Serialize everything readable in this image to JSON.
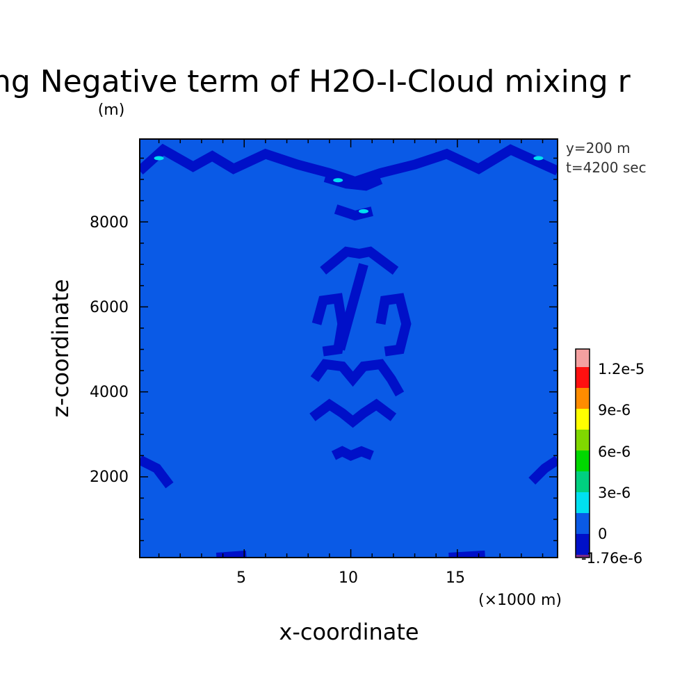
{
  "chart_data": {
    "type": "heatmap",
    "title": "ng Negative term of H2O-I-Cloud mixing r",
    "title_unit": "(m)",
    "xlabel": "x-coordinate",
    "ylabel": "z-coordinate",
    "x_unit": "(×1000 m)",
    "xlim": [
      0.1,
      19.7
    ],
    "ylim": [
      100,
      9950
    ],
    "x_ticks": [
      "5",
      "10",
      "15"
    ],
    "x_tick_values": [
      5,
      10,
      15
    ],
    "y_ticks": [
      "2000",
      "4000",
      "6000",
      "8000"
    ],
    "y_tick_values": [
      2000,
      4000,
      6000,
      8000
    ],
    "annotations": [
      "y=200 m",
      "t=4200 sec"
    ],
    "background_level": "0",
    "colorbar": {
      "levels": [
        {
          "color": "#7a2a8a"
        },
        {
          "color": "#0010c8"
        },
        {
          "color": "#0a5ae6"
        },
        {
          "color": "#00e0f0"
        },
        {
          "color": "#00d080"
        },
        {
          "color": "#00d800"
        },
        {
          "color": "#80d800"
        },
        {
          "color": "#ffff00"
        },
        {
          "color": "#ff8c00"
        },
        {
          "color": "#ff1010"
        },
        {
          "color": "#f4a0a0"
        }
      ],
      "labels": [
        "1.2e-5",
        "9e-6",
        "6e-6",
        "3e-6",
        "0",
        "-1.76e-6"
      ],
      "label_values": [
        1.2e-05,
        9e-06,
        6e-06,
        3e-06,
        0,
        -1.76e-06
      ]
    },
    "negative_regions": [
      {
        "x": [
          0.1,
          1.2,
          2.6,
          3.5,
          4.5,
          6.0,
          7.5,
          9.0,
          10.2,
          11.4,
          13.0,
          14.5,
          16.0,
          17.5,
          19.7
        ],
        "z": [
          9200,
          9700,
          9300,
          9550,
          9250,
          9600,
          9350,
          9150,
          8950,
          9150,
          9350,
          9600,
          9250,
          9700,
          9200
        ]
      },
      {
        "x": [
          8.8,
          9.8,
          10.7,
          11.4
        ],
        "z": [
          9050,
          8900,
          8850,
          9000
        ]
      },
      {
        "x": [
          9.3,
          10.2,
          11.0
        ],
        "z": [
          8300,
          8150,
          8250
        ]
      },
      {
        "x": [
          8.7,
          9.8,
          10.4,
          10.9,
          12.1
        ],
        "z": [
          6850,
          7300,
          7250,
          7300,
          6850
        ]
      },
      {
        "x": [
          9.5,
          10.6
        ],
        "z": [
          5000,
          7000
        ]
      },
      {
        "x": [
          8.4,
          8.7,
          9.4,
          9.6,
          9.4,
          8.7
        ],
        "z": [
          5600,
          6150,
          6200,
          5600,
          5000,
          4950
        ]
      },
      {
        "x": [
          11.4,
          11.6,
          12.3,
          12.6,
          12.3,
          11.6
        ],
        "z": [
          5600,
          6150,
          6200,
          5600,
          5000,
          4950
        ]
      },
      {
        "x": [
          8.3,
          8.8,
          9.6,
          10.1,
          10.6,
          11.4,
          11.9,
          12.3
        ],
        "z": [
          4300,
          4650,
          4600,
          4300,
          4600,
          4650,
          4300,
          3950
        ]
      },
      {
        "x": [
          8.2,
          9.0,
          9.6,
          10.1,
          10.6,
          11.2,
          12.0
        ],
        "z": [
          3400,
          3700,
          3500,
          3300,
          3500,
          3700,
          3400
        ]
      },
      {
        "x": [
          9.2,
          9.6,
          10.0,
          10.5,
          11.0
        ],
        "z": [
          2500,
          2600,
          2500,
          2600,
          2500
        ]
      },
      {
        "x": [
          0.1,
          0.9,
          1.5
        ],
        "z": [
          2400,
          2200,
          1800
        ]
      },
      {
        "x": [
          19.7,
          19.1,
          18.5
        ],
        "z": [
          2400,
          2200,
          1900
        ]
      },
      {
        "x": [
          3.7,
          5.1
        ],
        "z": [
          100,
          150
        ]
      },
      {
        "x": [
          14.6,
          16.3
        ],
        "z": [
          100,
          150
        ]
      }
    ],
    "positive_spots": [
      {
        "x": 1.0,
        "z": 9500
      },
      {
        "x": 18.8,
        "z": 9500
      },
      {
        "x": 9.4,
        "z": 8980
      },
      {
        "x": 10.6,
        "z": 8250
      }
    ]
  }
}
